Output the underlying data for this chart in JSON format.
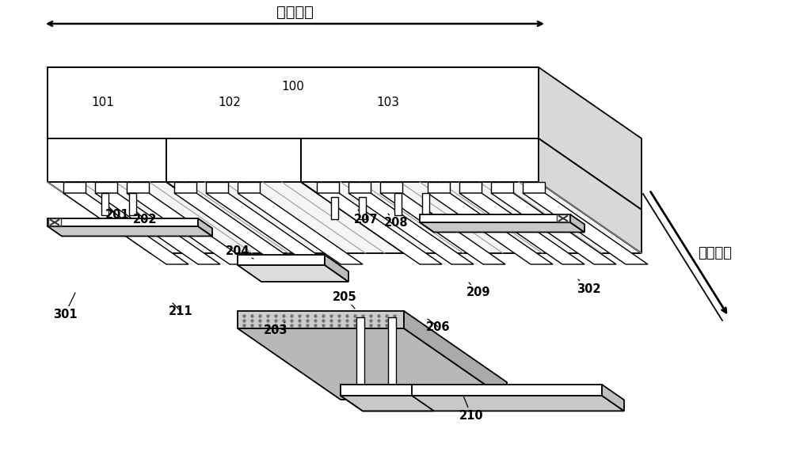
{
  "bg_color": "#ffffff",
  "lc": "#000000",
  "gray1": "#c8c8c8",
  "gray2": "#e0e0e0",
  "gray3": "#a0a0a0",
  "white": "#ffffff",
  "stripe_gray": "#d8d8d8",
  "xlabel": "长度方向",
  "ylabel": "宽度方向",
  "figsize": [
    10.0,
    5.75
  ],
  "dpi": 100,
  "ox": 130,
  "oy": -90
}
